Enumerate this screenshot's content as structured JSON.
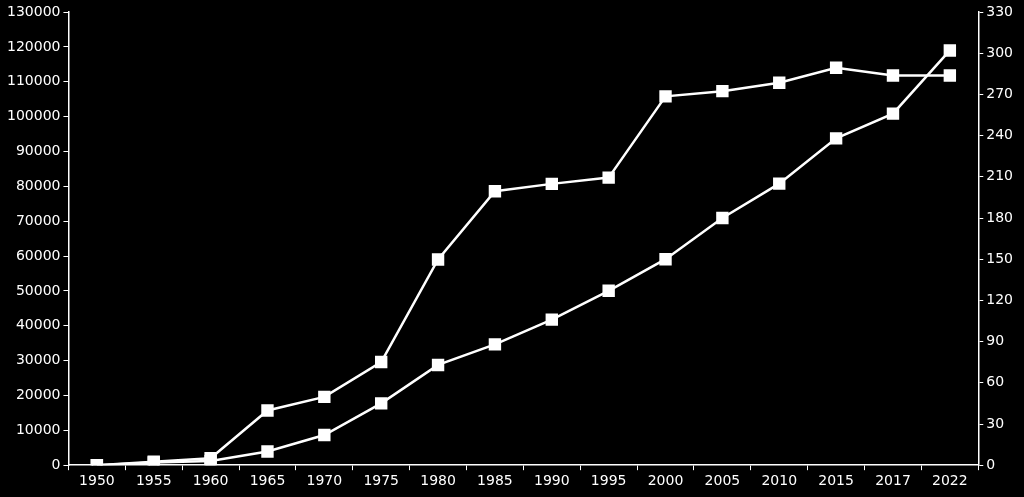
{
  "chart_data": {
    "type": "line",
    "categories": [
      "1950",
      "1955",
      "1960",
      "1965",
      "1970",
      "1975",
      "1980",
      "1985",
      "1990",
      "1995",
      "2000",
      "2005",
      "2010",
      "2015",
      "2017",
      "2022"
    ],
    "series": [
      {
        "color": "#ffffff",
        "marker": "square",
        "line_style": "solid",
        "axis": "y",
        "values": [
          0,
          1000,
          2000,
          15700,
          19600,
          29600,
          59000,
          78600,
          80700,
          82500,
          105800,
          107300,
          109700,
          114000,
          111800,
          111800
        ]
      },
      {
        "color": "#ffffff",
        "marker": "square",
        "line_style": "solid",
        "axis": "y2",
        "values": [
          0,
          2,
          3,
          10,
          22,
          45,
          73,
          88,
          106,
          127,
          150,
          180,
          205,
          238,
          256,
          302
        ]
      }
    ],
    "ylim": [
      0,
      130000
    ],
    "yticks": [
      0,
      10000,
      20000,
      30000,
      40000,
      50000,
      60000,
      70000,
      80000,
      90000,
      100000,
      110000,
      120000,
      130000
    ],
    "y2lim": [
      0,
      330
    ],
    "y2ticks": [
      0,
      30,
      60,
      90,
      120,
      150,
      180,
      210,
      240,
      270,
      300,
      330
    ],
    "grid": false
  }
}
